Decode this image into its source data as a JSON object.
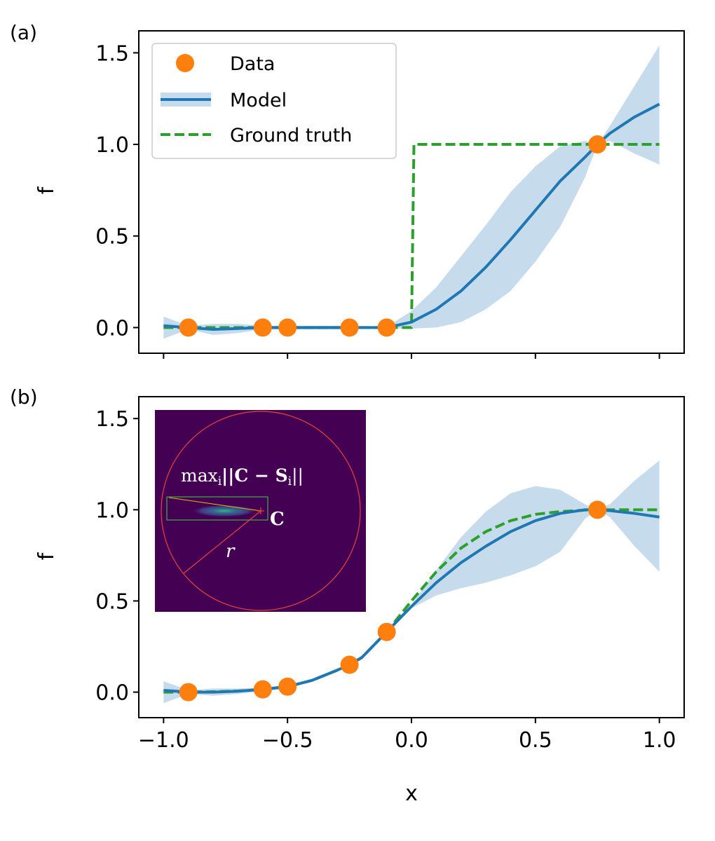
{
  "figure": {
    "x_label": "x",
    "y_label": "f"
  },
  "chart_data": [
    {
      "type": "line",
      "panel_label": "(a)",
      "xlabel": "",
      "ylabel": "f",
      "xlim": [
        -1.1,
        1.1
      ],
      "ylim": [
        -0.14,
        1.62
      ],
      "x_ticks": [
        -1.0,
        -0.5,
        0.0,
        0.5,
        1.0
      ],
      "x_tick_labels_shown": false,
      "y_ticks": [
        0.0,
        0.5,
        1.0,
        1.5
      ],
      "y_tick_labels": [
        "0.0",
        "0.5",
        "1.0",
        "1.5"
      ],
      "grid": false,
      "legend": {
        "placement": "top-left",
        "entries": [
          {
            "label": "Data",
            "kind": "marker"
          },
          {
            "label": "Model",
            "kind": "line-band"
          },
          {
            "label": "Ground truth",
            "kind": "dashed"
          }
        ]
      },
      "colors": {
        "model": "#1f77b4",
        "band": "#c6dbeb",
        "truth": "#2ca02c",
        "data": "#ff7f0e"
      },
      "series": [
        {
          "name": "Data",
          "kind": "scatter",
          "x": [
            -0.9,
            -0.6,
            -0.5,
            -0.25,
            -0.1,
            0.75
          ],
          "y": [
            0.0,
            0.0,
            0.0,
            0.0,
            0.0,
            1.0
          ]
        },
        {
          "name": "Model",
          "kind": "line",
          "x": [
            -1.0,
            -0.9,
            -0.8,
            -0.7,
            -0.6,
            -0.5,
            -0.4,
            -0.3,
            -0.25,
            -0.2,
            -0.1,
            0.0,
            0.1,
            0.2,
            0.3,
            0.4,
            0.5,
            0.6,
            0.7,
            0.75,
            0.8,
            0.9,
            1.0
          ],
          "y": [
            0.01,
            0.0,
            -0.01,
            -0.005,
            0.0,
            0.0,
            0.0,
            0.0,
            0.0,
            0.0,
            0.0,
            0.03,
            0.1,
            0.2,
            0.33,
            0.48,
            0.64,
            0.8,
            0.93,
            1.0,
            1.06,
            1.15,
            1.22
          ],
          "lower": [
            -0.06,
            -0.01,
            -0.04,
            -0.03,
            -0.01,
            -0.01,
            -0.01,
            -0.01,
            -0.005,
            -0.005,
            -0.005,
            -0.005,
            0.0,
            0.03,
            0.1,
            0.2,
            0.36,
            0.55,
            0.82,
            1.0,
            1.02,
            0.95,
            0.89
          ],
          "upper": [
            0.06,
            0.01,
            0.02,
            0.02,
            0.01,
            0.01,
            0.01,
            0.01,
            0.005,
            0.005,
            0.005,
            0.09,
            0.22,
            0.39,
            0.56,
            0.74,
            0.88,
            0.99,
            1.02,
            1.0,
            1.1,
            1.32,
            1.54
          ]
        },
        {
          "name": "Ground truth",
          "kind": "dashed",
          "x": [
            -1.0,
            -0.0,
            0.01,
            1.0
          ],
          "y": [
            0.0,
            0.0,
            1.0,
            1.0
          ]
        }
      ]
    },
    {
      "type": "line",
      "panel_label": "(b)",
      "xlabel": "x",
      "ylabel": "f",
      "xlim": [
        -1.1,
        1.1
      ],
      "ylim": [
        -0.14,
        1.62
      ],
      "x_ticks": [
        -1.0,
        -0.5,
        0.0,
        0.5,
        1.0
      ],
      "x_tick_labels": [
        "−1.0",
        "−0.5",
        "0.0",
        "0.5",
        "1.0"
      ],
      "y_ticks": [
        0.0,
        0.5,
        1.0,
        1.5
      ],
      "y_tick_labels": [
        "0.0",
        "0.5",
        "1.0",
        "1.5"
      ],
      "grid": false,
      "inset": {
        "colormap": "viridis",
        "background": "#440154",
        "annotation_text": "max_i||C − S_i||",
        "annotation_parts": {
          "max": "max",
          "sub_i": "i",
          "body": "||C − S",
          "tail": "||"
        },
        "point_label": "C",
        "radius_label": "r"
      },
      "series": [
        {
          "name": "Data",
          "kind": "scatter",
          "x": [
            -0.9,
            -0.6,
            -0.5,
            -0.25,
            -0.1,
            0.75
          ],
          "y": [
            0.0,
            0.015,
            0.03,
            0.15,
            0.33,
            1.0
          ]
        },
        {
          "name": "Model",
          "kind": "line",
          "x": [
            -1.0,
            -0.9,
            -0.8,
            -0.7,
            -0.6,
            -0.5,
            -0.4,
            -0.3,
            -0.25,
            -0.2,
            -0.1,
            0.0,
            0.1,
            0.2,
            0.3,
            0.4,
            0.5,
            0.6,
            0.7,
            0.75,
            0.8,
            0.9,
            1.0
          ],
          "y": [
            0.01,
            0.0,
            0.0,
            0.005,
            0.015,
            0.03,
            0.065,
            0.12,
            0.15,
            0.19,
            0.33,
            0.47,
            0.6,
            0.71,
            0.8,
            0.88,
            0.94,
            0.98,
            1.0,
            1.0,
            0.995,
            0.98,
            0.96
          ],
          "lower": [
            -0.06,
            -0.01,
            -0.02,
            -0.01,
            0.005,
            0.02,
            0.06,
            0.115,
            0.145,
            0.185,
            0.33,
            0.46,
            0.53,
            0.57,
            0.6,
            0.64,
            0.69,
            0.77,
            0.95,
            1.0,
            0.96,
            0.8,
            0.66
          ],
          "upper": [
            0.06,
            0.01,
            0.02,
            0.02,
            0.025,
            0.04,
            0.07,
            0.125,
            0.155,
            0.195,
            0.33,
            0.48,
            0.67,
            0.85,
            0.99,
            1.09,
            1.13,
            1.11,
            1.03,
            1.0,
            1.03,
            1.16,
            1.27
          ]
        },
        {
          "name": "Ground truth",
          "kind": "dashed",
          "x": [
            -1.0,
            -0.9,
            -0.8,
            -0.7,
            -0.6,
            -0.5,
            -0.4,
            -0.3,
            -0.25,
            -0.2,
            -0.1,
            0.0,
            0.1,
            0.2,
            0.3,
            0.4,
            0.5,
            0.6,
            0.7,
            0.75,
            0.8,
            0.9,
            1.0
          ],
          "y": [
            0.0,
            0.0,
            0.002,
            0.006,
            0.015,
            0.03,
            0.065,
            0.12,
            0.15,
            0.19,
            0.33,
            0.5,
            0.66,
            0.79,
            0.88,
            0.94,
            0.975,
            0.99,
            0.998,
            1.0,
            1.0,
            1.0,
            1.0
          ]
        }
      ]
    }
  ]
}
